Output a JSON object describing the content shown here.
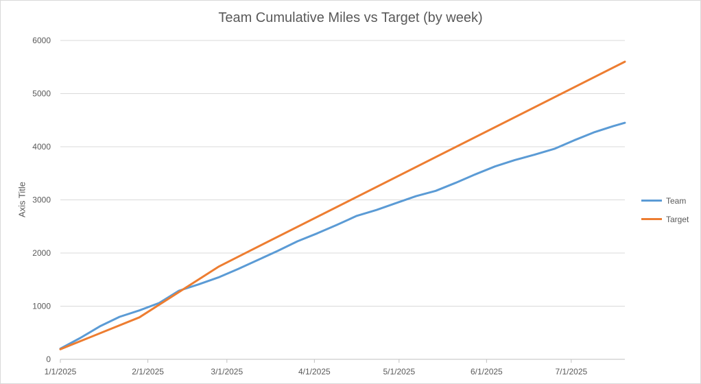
{
  "chart_data": {
    "type": "line",
    "title": "Team Cumulative Miles vs Target (by week)",
    "xlabel": "",
    "ylabel": "Axis Title",
    "x_ticks": [
      "1/1/2025",
      "2/1/2025",
      "3/1/2025",
      "4/1/2025",
      "5/1/2025",
      "6/1/2025",
      "7/1/2025"
    ],
    "y_ticks": [
      "0",
      "1000",
      "2000",
      "3000",
      "4000",
      "5000",
      "6000"
    ],
    "ylim": [
      0,
      6000
    ],
    "xlim": [
      "1/1/2025",
      "7/20/2025"
    ],
    "grid": true,
    "legend_position": "right",
    "series": [
      {
        "name": "Team",
        "color": "#5b9bd5",
        "x": [
          "1/1/2025",
          "1/8/2025",
          "1/15/2025",
          "1/22/2025",
          "1/29/2025",
          "2/5/2025",
          "2/12/2025",
          "2/19/2025",
          "2/26/2025",
          "3/5/2025",
          "3/12/2025",
          "3/19/2025",
          "3/26/2025",
          "4/2/2025",
          "4/9/2025",
          "4/16/2025",
          "4/23/2025",
          "4/30/2025",
          "5/7/2025",
          "5/14/2025",
          "5/21/2025",
          "5/28/2025",
          "6/4/2025",
          "6/11/2025",
          "6/18/2025",
          "6/25/2025",
          "7/2/2025",
          "7/9/2025",
          "7/16/2025",
          "7/20/2025"
        ],
        "values": [
          200,
          400,
          620,
          800,
          920,
          1060,
          1290,
          1410,
          1540,
          1700,
          1870,
          2040,
          2220,
          2370,
          2530,
          2700,
          2810,
          2940,
          3070,
          3170,
          3320,
          3480,
          3630,
          3750,
          3850,
          3960,
          4120,
          4270,
          4390,
          4450
        ]
      },
      {
        "name": "Target",
        "color": "#ed7d31",
        "x": [
          "1/1/2025",
          "1/29/2025",
          "2/26/2025",
          "3/5/2025",
          "7/20/2025"
        ],
        "values": [
          190,
          790,
          1740,
          1930,
          5600
        ]
      }
    ]
  }
}
